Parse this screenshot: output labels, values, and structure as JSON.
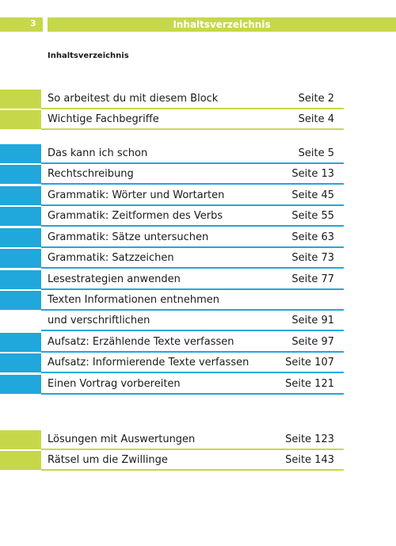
{
  "header": {
    "page_number": "3",
    "title": "Inhaltsverzeichnis"
  },
  "subtitle": "Inhaltsverzeichnis",
  "groups": {
    "intro": [
      {
        "label": "So arbeitest du mit diesem Block",
        "page": "Seite 2"
      },
      {
        "label": "Wichtige Fachbegriffe",
        "page": "Seite 4"
      }
    ],
    "main": [
      {
        "label": "Das kann ich schon",
        "page": "Seite 5"
      },
      {
        "label": "Rechtschreibung",
        "page": "Seite 13"
      },
      {
        "label": "Grammatik: Wörter und Wortarten",
        "page": "Seite 45"
      },
      {
        "label": "Grammatik: Zeitformen des Verbs",
        "page": "Seite 55"
      },
      {
        "label": "Grammatik: Sätze untersuchen",
        "page": "Seite 63"
      },
      {
        "label": "Grammatik: Satzzeichen",
        "page": "Seite 73"
      },
      {
        "label": "Lesestrategien anwenden",
        "page": "Seite 77"
      },
      {
        "label": "Texten Informationen entnehmen",
        "page": ""
      },
      {
        "label": "und verschriftlichen",
        "page": "Seite 91"
      },
      {
        "label": "Aufsatz: Erzählende Texte verfassen",
        "page": "Seite 97"
      },
      {
        "label": "Aufsatz: Informierende Texte verfassen",
        "page": "Seite 107"
      },
      {
        "label": "Einen Vortrag vorbereiten",
        "page": "Seite 121"
      }
    ],
    "end": [
      {
        "label": "Lösungen mit Auswertungen",
        "page": "Seite 123"
      },
      {
        "label": "Rätsel um die Zwillinge",
        "page": "Seite 143"
      }
    ]
  },
  "colors": {
    "green": "#c6d84a",
    "blue": "#20a7dc"
  }
}
